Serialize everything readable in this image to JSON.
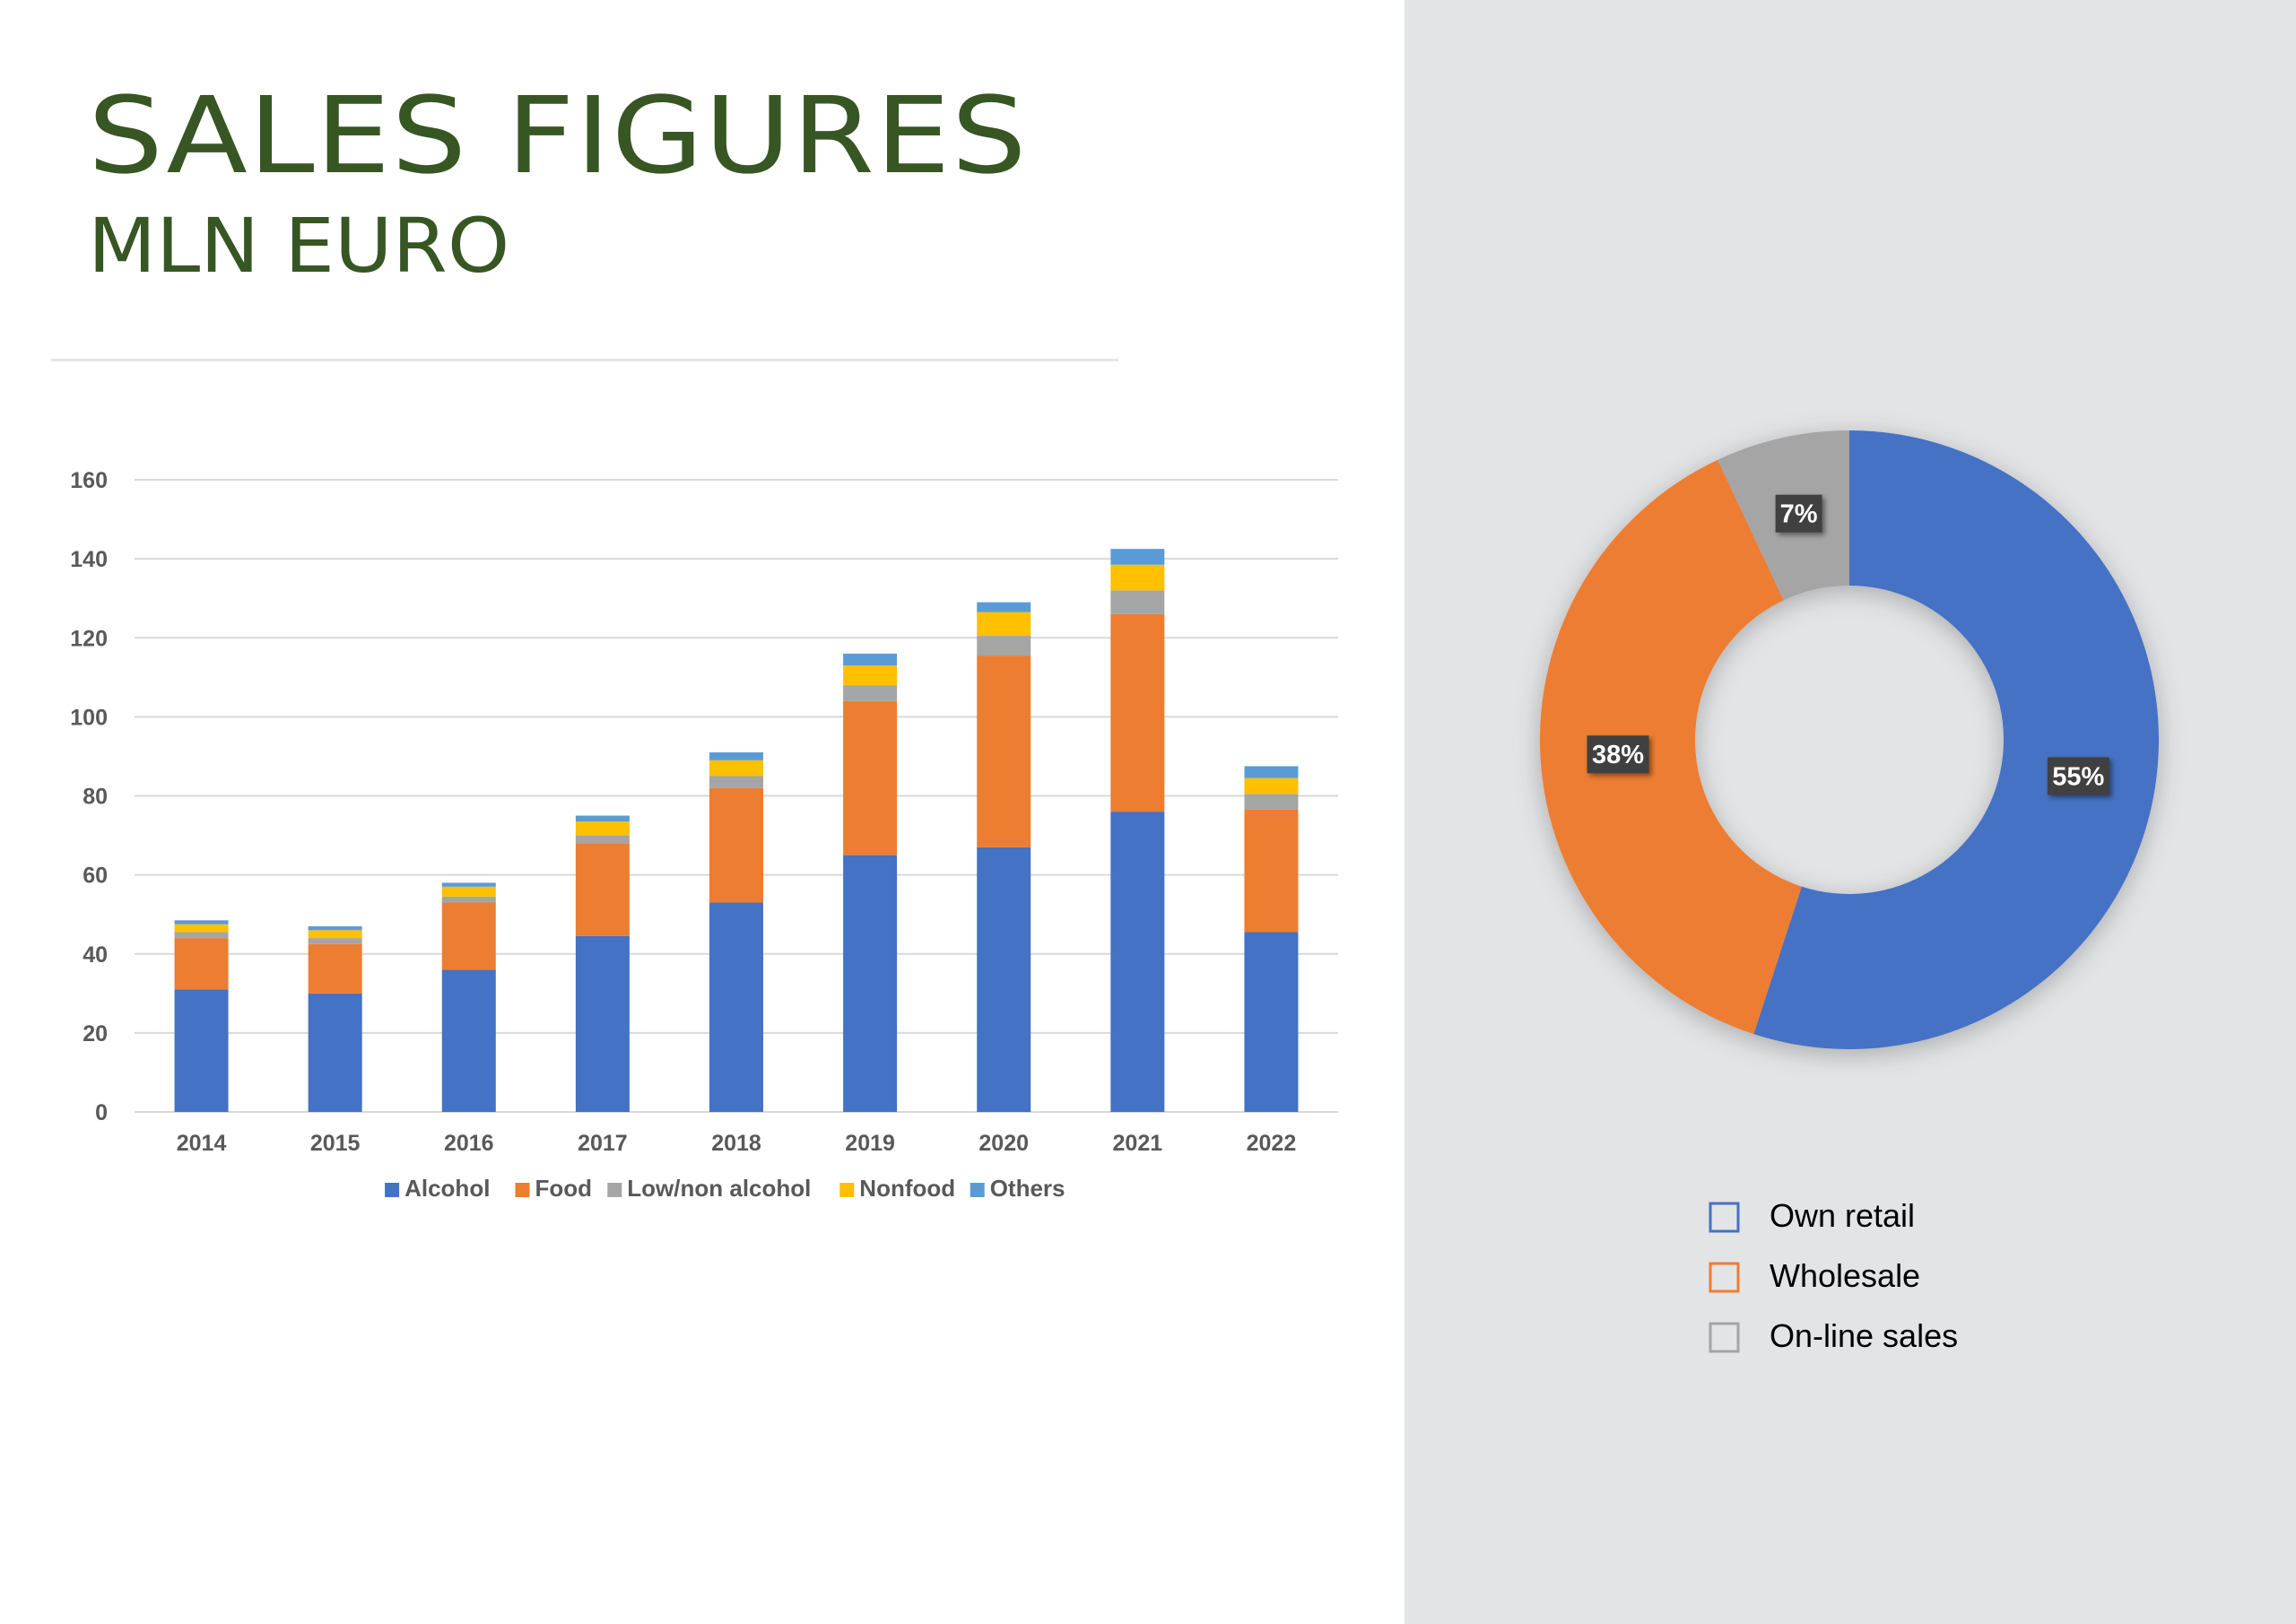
{
  "header": {
    "title": "SALES FIGURES",
    "subtitle": "MLN EURO"
  },
  "colors": {
    "alcohol": "#4472c4",
    "food": "#ed7d31",
    "low_non_alcohol": "#a5a5a5",
    "nonfood": "#ffc000",
    "others": "#5b9bd5",
    "title": "#375623",
    "panel": "#e3e4e6"
  },
  "chart_data": [
    {
      "type": "bar",
      "stacked": true,
      "categories": [
        "2014",
        "2015",
        "2016",
        "2017",
        "2018",
        "2019",
        "2020",
        "2021",
        "2022"
      ],
      "series": [
        {
          "name": "Alcohol",
          "color": "#4472c4",
          "values": [
            31,
            30,
            36,
            44.5,
            53,
            65,
            67,
            76,
            45.5
          ]
        },
        {
          "name": "Food",
          "color": "#ed7d31",
          "values": [
            13,
            12.5,
            17,
            23.5,
            29,
            39,
            48.5,
            50,
            31
          ]
        },
        {
          "name": "Low/non alcohol",
          "color": "#a5a5a5",
          "values": [
            1.5,
            1.5,
            1.5,
            2,
            3,
            4,
            5,
            6,
            4
          ]
        },
        {
          "name": "Nonfood",
          "color": "#ffc000",
          "values": [
            2,
            2,
            2.5,
            3.5,
            4,
            5,
            6,
            6.5,
            4
          ]
        },
        {
          "name": "Others",
          "color": "#5b9bd5",
          "values": [
            1,
            1,
            1,
            1.5,
            2,
            3,
            2.5,
            4,
            3
          ]
        }
      ],
      "yticks": [
        "0",
        "20",
        "40",
        "60",
        "80",
        "100",
        "120",
        "140",
        "160"
      ],
      "ylim": [
        0,
        160
      ],
      "grid": true,
      "legend": "bottom",
      "title": "",
      "xlabel": "",
      "ylabel": ""
    },
    {
      "type": "pie",
      "donut": true,
      "slices": [
        {
          "name": "Own retail",
          "value": 55,
          "label": "55%",
          "color": "#4472c4"
        },
        {
          "name": "Wholesale",
          "value": 38,
          "label": "38%",
          "color": "#ed7d31"
        },
        {
          "name": "On-line sales",
          "value": 7,
          "label": "7%",
          "color": "#a5a5a5"
        }
      ],
      "legend": "bottom"
    }
  ]
}
